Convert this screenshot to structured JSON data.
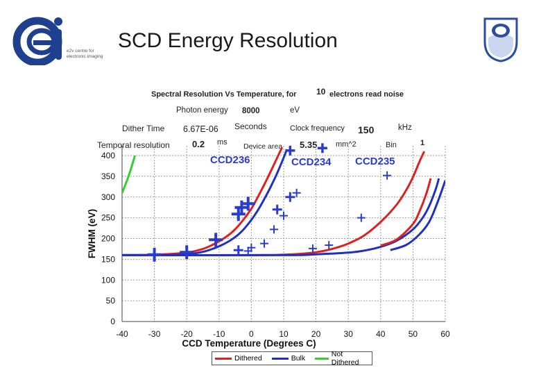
{
  "slide": {
    "title": "SCD Energy Resolution",
    "logo_text": "ei",
    "logo_subtitle_1": "e2v centre for",
    "logo_subtitle_2": "electronic imaging",
    "colors": {
      "logo_blue": "#1f3f8f",
      "ou_blue": "#2b4f9e"
    }
  },
  "header": {
    "title_left": "Spectral Resolution Vs Temperature, for",
    "noise_value": "10",
    "title_right": "electrons read noise",
    "photon_label": "Photon energy",
    "photon_value": "8000",
    "photon_unit": "eV",
    "dither_label": "Dither Time",
    "dither_value": "6.67E-06",
    "dither_unit": "Seconds",
    "clock_label": "Clock frequency",
    "clock_value": "150",
    "clock_unit": "kHz",
    "temporal_label": "Temporal resolution",
    "temporal_value": "0.2",
    "temporal_unit": "ms",
    "area_label": "Device area",
    "area_value": "5.35",
    "area_unit": "mm^2",
    "bin_label": "Bin",
    "bin_value": "1"
  },
  "chart_data": {
    "type": "line",
    "title": "Spectral Resolution Vs Temperature",
    "xlabel": "CCD Temperature (Degrees C)",
    "ylabel": "FWHM (eV)",
    "xlim": [
      -40,
      60
    ],
    "ylim": [
      0,
      400
    ],
    "xticks": [
      -40,
      -30,
      -20,
      -10,
      0,
      10,
      20,
      30,
      40,
      50,
      60
    ],
    "yticks": [
      0,
      50,
      100,
      150,
      200,
      250,
      300,
      350,
      400
    ],
    "grid": true,
    "legend_position": "bottom",
    "series": [
      {
        "name": "Dithered",
        "color": "#e02020",
        "x": [
          -40,
          -30,
          -20,
          -15,
          -12,
          -9,
          -6,
          -3,
          0,
          2,
          4,
          6,
          8,
          9.5
        ],
        "y": [
          160,
          161,
          166,
          175,
          185,
          198,
          215,
          240,
          272,
          300,
          330,
          362,
          395,
          420
        ]
      },
      {
        "name": "Bulk",
        "color": "#2030c0",
        "x": [
          -40,
          -30,
          -20,
          -15,
          -12,
          -9,
          -6,
          -3,
          0,
          2,
          4,
          6,
          8,
          10,
          11
        ],
        "y": [
          160,
          160,
          162,
          168,
          175,
          185,
          198,
          217,
          245,
          268,
          295,
          325,
          358,
          395,
          415
        ]
      },
      {
        "name": "Dithered",
        "color": "#e02020",
        "x": [
          -40,
          0,
          10,
          15,
          20,
          25,
          30,
          35,
          40,
          45,
          48,
          50,
          52,
          53.5
        ],
        "y": [
          160,
          160,
          161,
          163,
          167,
          175,
          188,
          208,
          240,
          282,
          318,
          348,
          385,
          410
        ]
      },
      {
        "name": "Bulk",
        "color": "#2030c0",
        "x": [
          -40,
          10,
          20,
          30,
          35,
          40,
          45,
          50,
          53,
          55,
          57,
          58
        ],
        "y": [
          160,
          160,
          162,
          166,
          171,
          180,
          195,
          222,
          250,
          278,
          318,
          345
        ]
      },
      {
        "name": "Dithered",
        "color": "#e02020",
        "x": [
          40,
          45,
          50,
          52,
          54,
          55.5
        ],
        "y": [
          183,
          198,
          235,
          265,
          305,
          345
        ]
      },
      {
        "name": "Bulk",
        "color": "#2030c0",
        "x": [
          43,
          48,
          52,
          55,
          57.5,
          60
        ],
        "y": [
          172,
          185,
          210,
          240,
          285,
          340
        ]
      },
      {
        "name": "Not Dithered",
        "color": "#30d030",
        "x": [
          -40,
          -38,
          -36
        ],
        "y": [
          310,
          350,
          400
        ]
      }
    ],
    "markers": {
      "color": "#2a3bd0",
      "large": [
        [
          -30,
          161
        ],
        [
          -20,
          167
        ],
        [
          -11,
          197
        ],
        [
          -3,
          275
        ],
        [
          -4,
          259
        ],
        [
          -1,
          284
        ]
      ],
      "small": [
        [
          -1,
          170
        ],
        [
          0,
          178
        ],
        [
          4,
          188
        ],
        [
          7,
          222
        ],
        [
          10,
          255
        ],
        [
          14,
          310
        ],
        [
          19,
          176
        ],
        [
          24,
          184
        ],
        [
          34,
          250
        ],
        [
          42,
          352
        ]
      ],
      "cross": [
        [
          -4,
          172
        ],
        [
          8,
          270
        ],
        [
          12,
          300
        ]
      ]
    },
    "legend": [
      {
        "name": "Dithered",
        "color": "#e02020"
      },
      {
        "name": "Bulk",
        "color": "#2030c0"
      },
      {
        "name": "Not Dithered",
        "color": "#30d030"
      }
    ],
    "annotations": [
      "CCD236",
      "CCD234",
      "CCD235"
    ]
  }
}
